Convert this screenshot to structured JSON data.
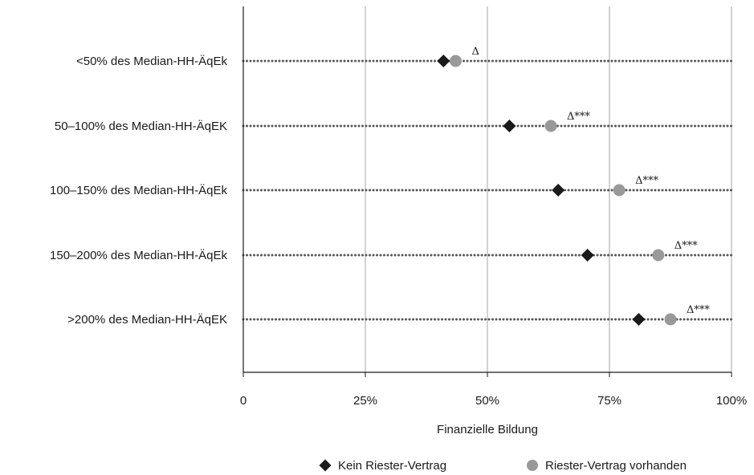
{
  "chart_data": {
    "type": "scatter",
    "xlabel": "Finanzielle Bildung",
    "xlim": [
      0,
      100
    ],
    "x_ticks": [
      {
        "value": 0,
        "label": "0"
      },
      {
        "value": 25,
        "label": "25%"
      },
      {
        "value": 50,
        "label": "50%"
      },
      {
        "value": 75,
        "label": "75%"
      },
      {
        "value": 100,
        "label": "100%"
      }
    ],
    "grid": "vertical",
    "categories": [
      "<50% des Median-HH-ÄqEk",
      "50–100% des Median-HH-ÄqEK",
      "100–150% des Median-HH-ÄqEk",
      "150–200% des Median-HH-ÄqEk",
      ">200% des Median-HH-ÄqEK"
    ],
    "series": [
      {
        "name": "Kein Riester-Vertrag",
        "marker": "diamond",
        "color": "#1a1a1a",
        "values": [
          41,
          54.5,
          64.5,
          70.5,
          81
        ]
      },
      {
        "name": "Riester-Vertrag vorhanden",
        "marker": "circle",
        "color": "#999999",
        "values": [
          43.5,
          63,
          77,
          85,
          87.5
        ]
      }
    ],
    "annotations": [
      "Δ",
      "Δ***",
      "Δ***",
      "Δ***",
      "Δ***"
    ],
    "legend_position": "bottom"
  }
}
